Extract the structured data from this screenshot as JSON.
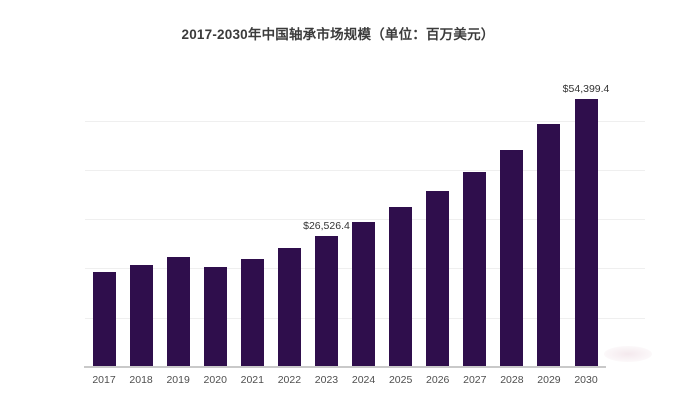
{
  "header": {
    "title": "2017-2030年中国轴承市场规模（单位：百万美元）"
  },
  "chart_data": {
    "type": "bar",
    "title": "2017-2030年中国轴承市场规模（单位：百万美元）",
    "unit_label": "百万美元",
    "categories": [
      "2017",
      "2018",
      "2019",
      "2020",
      "2021",
      "2022",
      "2023",
      "2024",
      "2025",
      "2026",
      "2027",
      "2028",
      "2029",
      "2030"
    ],
    "values": [
      19200,
      20800,
      22300,
      20200,
      21900,
      24200,
      26526.4,
      29500,
      32400,
      35750,
      39550,
      44100,
      49250,
      54399.4
    ],
    "data_labels": [
      {
        "index": 6,
        "text": "$26,526.4"
      },
      {
        "index": 13,
        "text": "$54,399.4"
      }
    ],
    "ylabel": "",
    "xlabel": "",
    "ylim": [
      0,
      55000
    ],
    "gridline_interval": 10000,
    "grid": "horizontal-faint",
    "legend": "none",
    "colors": {
      "bar": "#2F0E4C",
      "axis_line": "#c9c9c9",
      "gridline": "#efefef",
      "tick_label": "#4f4f4f",
      "data_label": "#333333",
      "title": "#3b3b3b",
      "background": "#ffffff"
    }
  }
}
